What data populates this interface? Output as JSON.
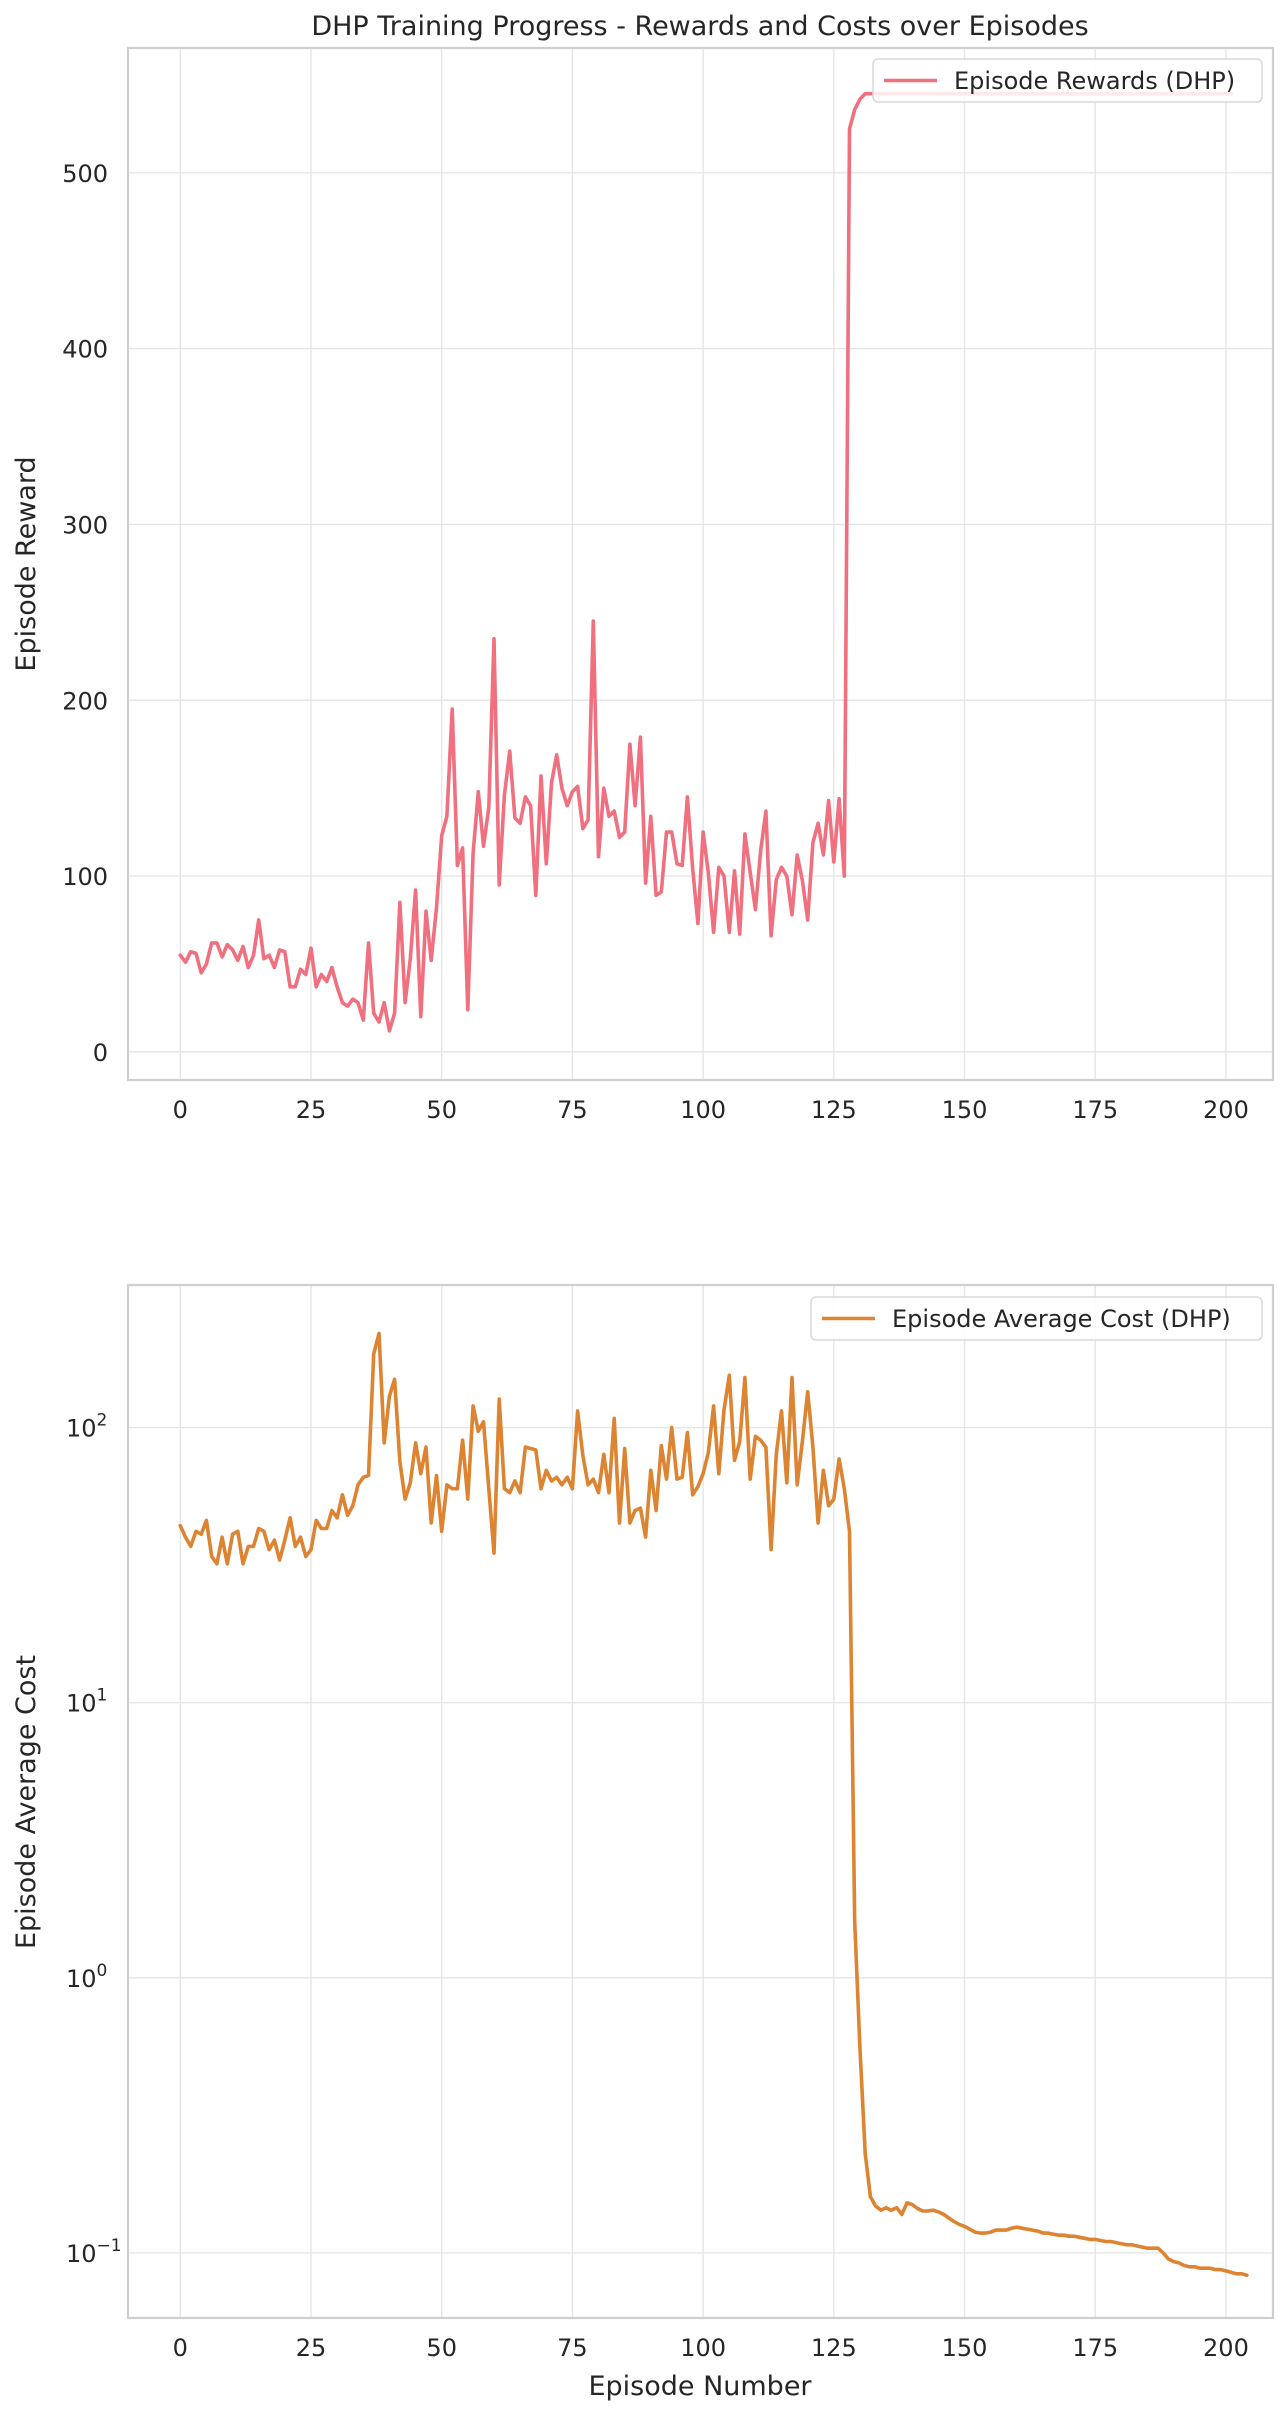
{
  "chart_data": [
    {
      "type": "line",
      "title": "DHP Training Progress - Rewards and Costs over Episodes",
      "xlabel": "",
      "ylabel": "Episode Reward",
      "xlim": [
        -10,
        209
      ],
      "ylim": [
        -16,
        571
      ],
      "yscale": "linear",
      "x_ticks": [
        0,
        25,
        50,
        75,
        100,
        125,
        150,
        175,
        200
      ],
      "y_ticks": [
        0,
        100,
        200,
        300,
        400,
        500
      ],
      "grid": true,
      "legend_position": "top-right",
      "series": [
        {
          "name": "Episode Rewards (DHP)",
          "color": "#f0707f",
          "x_start": 0,
          "values": [
            55,
            51,
            57,
            56,
            45,
            50,
            62,
            62,
            54,
            61,
            58,
            52,
            60,
            48,
            55,
            75,
            53,
            55,
            48,
            58,
            57,
            37,
            37,
            47,
            44,
            59,
            37,
            44,
            40,
            48,
            37,
            28,
            26,
            30,
            28,
            18,
            62,
            22,
            17,
            28,
            12,
            22,
            85,
            28,
            53,
            92,
            20,
            80,
            52,
            82,
            123,
            134,
            195,
            106,
            116,
            24,
            113,
            148,
            117,
            139,
            235,
            95,
            146,
            171,
            133,
            130,
            145,
            140,
            89,
            157,
            107,
            153,
            169,
            150,
            140,
            148,
            151,
            127,
            132,
            245,
            111,
            150,
            134,
            137,
            122,
            125,
            175,
            140,
            179,
            96,
            134,
            89,
            91,
            125,
            125,
            107,
            106,
            145,
            104,
            73,
            125,
            102,
            68,
            105,
            100,
            68,
            103,
            67,
            124,
            102,
            81,
            114,
            137,
            66,
            98,
            105,
            100,
            78,
            112,
            97,
            75,
            119,
            130,
            112,
            143,
            108,
            144,
            100,
            525,
            536,
            542,
            545,
            545,
            545,
            545,
            545,
            545,
            545,
            545,
            545,
            545,
            545,
            545,
            545,
            545,
            545,
            545,
            545,
            545,
            545,
            545,
            545,
            545,
            545,
            545,
            545,
            545,
            545,
            545,
            545,
            545,
            545,
            545,
            545,
            545,
            545,
            545,
            545,
            545,
            545,
            545,
            545,
            545,
            545,
            545,
            545,
            545,
            545,
            545,
            545,
            545,
            545,
            545,
            545,
            545,
            545,
            545,
            545,
            545,
            545,
            545,
            545,
            545,
            545,
            545,
            545,
            545,
            545,
            545,
            545,
            545,
            545
          ]
        }
      ]
    },
    {
      "type": "line",
      "title": "",
      "xlabel": "Episode Number",
      "ylabel": "Episode Average Cost",
      "xlim": [
        -10,
        209
      ],
      "ylim": [
        0.058,
        330
      ],
      "yscale": "log",
      "x_ticks": [
        0,
        25,
        50,
        75,
        100,
        125,
        150,
        175,
        200
      ],
      "y_ticks": [
        0.1,
        1,
        10,
        100
      ],
      "y_tick_labels": [
        {
          "base": "10",
          "exp": "−1"
        },
        {
          "base": "10",
          "exp": "0"
        },
        {
          "base": "10",
          "exp": "1"
        },
        {
          "base": "10",
          "exp": "2"
        }
      ],
      "grid": true,
      "legend_position": "top-right",
      "series": [
        {
          "name": "Episode Average Cost (DHP)",
          "color": "#dd8432",
          "x_start": 0,
          "values": [
            44,
            40,
            37,
            42,
            41,
            46,
            34,
            32,
            40,
            32,
            41,
            42,
            32,
            37,
            37,
            43,
            42,
            36,
            39,
            33,
            39,
            47,
            37,
            40,
            34,
            36,
            46,
            43,
            43,
            50,
            47,
            57,
            48,
            52,
            62,
            66,
            67,
            185,
            220,
            88,
            130,
            150,
            75,
            55,
            63,
            88,
            68,
            85,
            45,
            67,
            42,
            62,
            60,
            60,
            90,
            55,
            120,
            97,
            105,
            60,
            35,
            127,
            60,
            58,
            64,
            58,
            85,
            84,
            83,
            60,
            70,
            64,
            66,
            62,
            66,
            60,
            115,
            79,
            62,
            65,
            58,
            80,
            58,
            108,
            45,
            84,
            45,
            50,
            51,
            40,
            70,
            50,
            86,
            65,
            100,
            65,
            66,
            96,
            57,
            61,
            68,
            81,
            120,
            68,
            116,
            155,
            76,
            89,
            152,
            65,
            93,
            90,
            85,
            36,
            80,
            115,
            63,
            152,
            62,
            90,
            135,
            85,
            45,
            70,
            52,
            55,
            77,
            60,
            42,
            1.6,
            0.55,
            0.23,
            0.16,
            0.148,
            0.143,
            0.146,
            0.143,
            0.146,
            0.138,
            0.152,
            0.15,
            0.145,
            0.142,
            0.142,
            0.143,
            0.141,
            0.138,
            0.134,
            0.13,
            0.127,
            0.125,
            0.122,
            0.119,
            0.118,
            0.118,
            0.119,
            0.121,
            0.121,
            0.121,
            0.123,
            0.124,
            0.123,
            0.122,
            0.121,
            0.12,
            0.118,
            0.118,
            0.117,
            0.116,
            0.116,
            0.115,
            0.115,
            0.114,
            0.113,
            0.112,
            0.112,
            0.111,
            0.11,
            0.11,
            0.109,
            0.108,
            0.107,
            0.107,
            0.106,
            0.105,
            0.104,
            0.104,
            0.104,
            0.1,
            0.095,
            0.093,
            0.092,
            0.09,
            0.089,
            0.089,
            0.088,
            0.088,
            0.088,
            0.087,
            0.087,
            0.086,
            0.085,
            0.084,
            0.084,
            0.083
          ]
        }
      ]
    }
  ]
}
